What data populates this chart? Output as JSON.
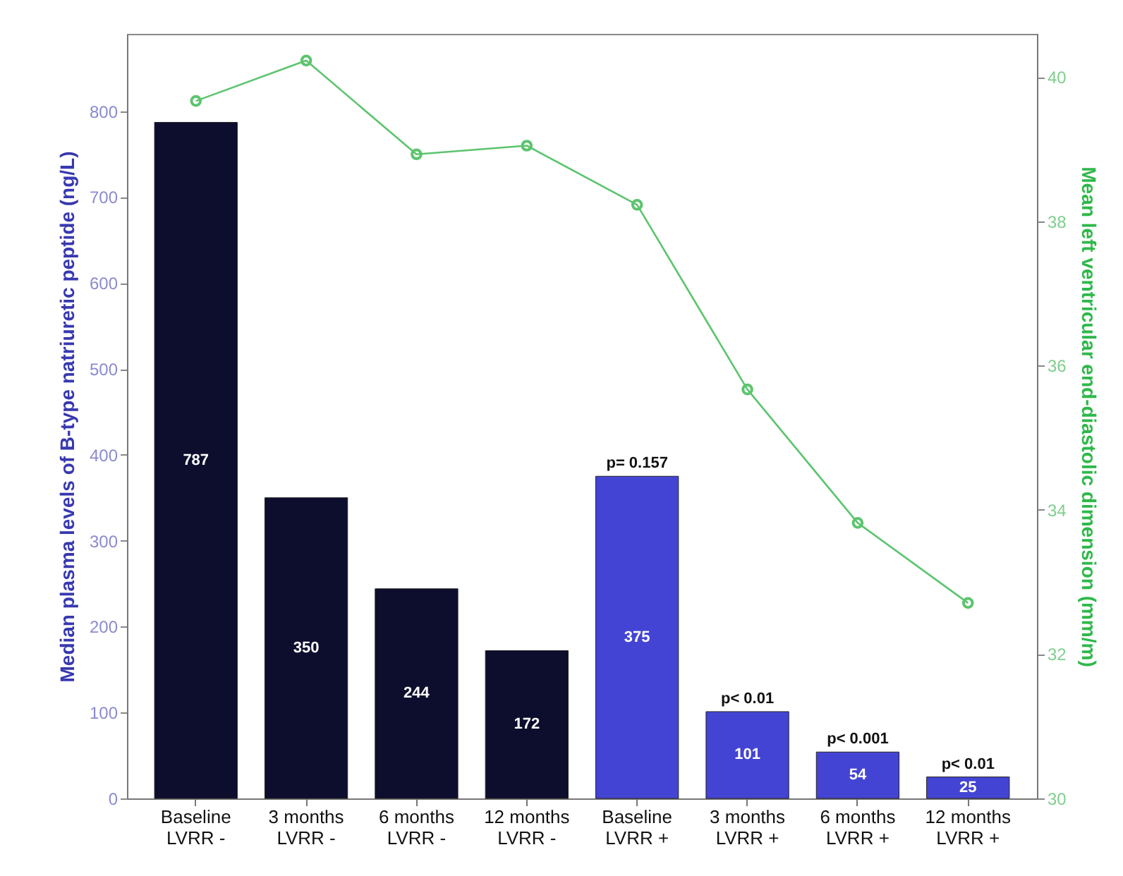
{
  "chart_data": {
    "type": "bar",
    "categories": [
      "Baseline\nLVRR -",
      "3 months\nLVRR -",
      "6 months\nLVRR -",
      "12 months\nLVRR -",
      "Baseline\nLVRR +",
      "3 months\nLVRR +",
      "6 months\nLVRR +",
      "12 months\nLVRR +"
    ],
    "series": [
      {
        "value_labels": [
          "787",
          "350",
          "244",
          "172",
          "375",
          "101",
          "54",
          "25"
        ],
        "colors": [
          "#0d0d2e",
          "#0d0d2e",
          "#0d0d2e",
          "#0d0d2e",
          "#4444d4",
          "#4444d4",
          "#4444d4",
          "#4444d4"
        ],
        "values": [
          787,
          350,
          244,
          172,
          375,
          101,
          54,
          25
        ]
      },
      {
        "type": "line",
        "axis": "y2",
        "color": "#5cc46e",
        "marker": "circle",
        "values": [
          39.67,
          40.23,
          38.93,
          39.05,
          38.23,
          35.67,
          33.82,
          32.71
        ]
      }
    ],
    "ylabel": "Median plasma levels of B-type natriuretic peptide (ng/L)",
    "y2label": "Mean left ventricular end-diastolic dimension (mm/m)",
    "ylim": [
      0,
      890
    ],
    "yticks": [
      0,
      100,
      200,
      300,
      400,
      500,
      600,
      700,
      800
    ],
    "y2lim": [
      30,
      40.6
    ],
    "y2ticks": [
      30,
      32,
      34,
      36,
      38,
      40
    ],
    "annotations": [
      {
        "text": "p= 0.157",
        "x": "Baseline\nLVRR +",
        "y": 375
      },
      {
        "text": "p< 0.01",
        "x": "3 months\nLVRR +",
        "y": 101
      },
      {
        "text": "p< 0.001",
        "x": "6 months\nLVRR +",
        "y": 54
      },
      {
        "text": "p< 0.01",
        "x": "12 months\nLVRR +",
        "y": 25
      }
    ],
    "grid": false,
    "legend": false
  }
}
